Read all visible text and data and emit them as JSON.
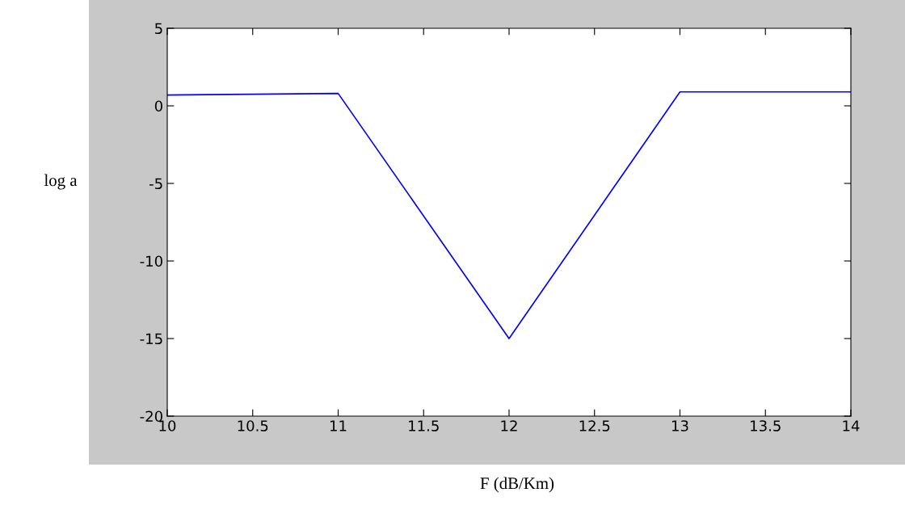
{
  "chart_data": {
    "type": "line",
    "xlabel": "F (dB/Km)",
    "ylabel": "log a",
    "x": [
      10,
      10.5,
      11,
      12,
      13,
      14
    ],
    "series": [
      {
        "color": "#0000ff",
        "values": [
          0.7,
          0.75,
          0.8,
          -15,
          0.9,
          0.9
        ]
      }
    ],
    "xlim": [
      10,
      14
    ],
    "xticks": [
      10,
      10.5,
      11,
      11.5,
      12,
      12.5,
      13,
      13.5,
      14
    ],
    "ylim": [
      -20,
      5
    ],
    "yticks": [
      -20,
      -15,
      -10,
      -5,
      0,
      5
    ],
    "grid": false,
    "legend": false,
    "line_style": "solid",
    "marker": "none"
  }
}
